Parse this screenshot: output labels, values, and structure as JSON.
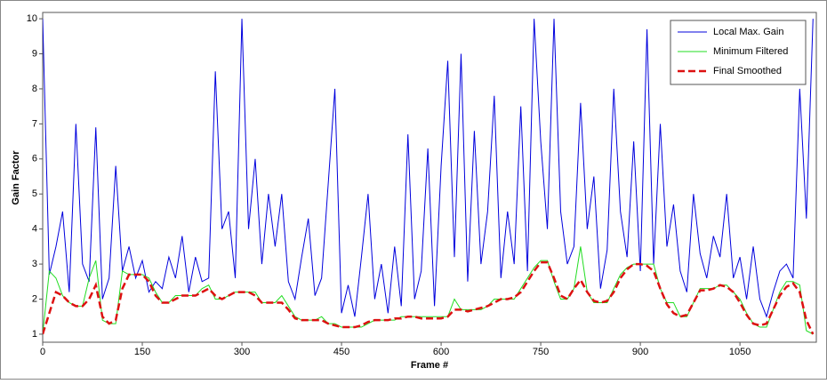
{
  "chart_data": {
    "type": "line",
    "x_label": "Frame #",
    "y_label": "Gain Factor",
    "x": [
      0,
      10,
      20,
      30,
      40,
      50,
      60,
      70,
      80,
      90,
      100,
      110,
      120,
      130,
      140,
      150,
      160,
      170,
      180,
      190,
      200,
      210,
      220,
      230,
      240,
      250,
      260,
      270,
      280,
      290,
      300,
      310,
      320,
      330,
      340,
      350,
      360,
      370,
      380,
      390,
      400,
      410,
      420,
      430,
      440,
      450,
      460,
      470,
      480,
      490,
      500,
      510,
      520,
      530,
      540,
      550,
      560,
      570,
      580,
      590,
      600,
      610,
      620,
      630,
      640,
      650,
      660,
      670,
      680,
      690,
      700,
      710,
      720,
      730,
      740,
      750,
      760,
      770,
      780,
      790,
      800,
      810,
      820,
      830,
      840,
      850,
      860,
      870,
      880,
      890,
      900,
      910,
      920,
      930,
      940,
      950,
      960,
      970,
      980,
      990,
      1000,
      1010,
      1020,
      1030,
      1040,
      1050,
      1060,
      1070,
      1080,
      1090,
      1100,
      1110,
      1120,
      1130,
      1140,
      1150,
      1160
    ],
    "series": [
      {
        "name": "Local Max. Gain",
        "color": "#0000dd",
        "style": "solid",
        "values": [
          10,
          2.7,
          3.5,
          4.5,
          2.2,
          7.0,
          3.0,
          2.5,
          6.9,
          2.0,
          2.6,
          5.8,
          2.8,
          3.5,
          2.6,
          3.1,
          2.2,
          2.5,
          2.3,
          3.2,
          2.6,
          3.8,
          2.2,
          3.2,
          2.5,
          2.6,
          8.5,
          4.0,
          4.5,
          2.6,
          10.0,
          4.0,
          6.0,
          3.0,
          5.0,
          3.5,
          5.0,
          2.5,
          2.0,
          3.2,
          4.3,
          2.1,
          2.6,
          5.3,
          8.0,
          1.6,
          2.4,
          1.5,
          3.2,
          5.0,
          2.0,
          3.0,
          1.6,
          3.5,
          1.8,
          6.7,
          2.0,
          2.8,
          6.3,
          1.8,
          5.8,
          8.8,
          3.2,
          9.0,
          2.5,
          6.8,
          3.0,
          4.5,
          7.8,
          2.6,
          4.5,
          3.0,
          7.5,
          2.8,
          10.0,
          6.5,
          4.0,
          10.0,
          4.5,
          3.0,
          3.5,
          7.6,
          4.0,
          5.5,
          2.3,
          3.4,
          8.0,
          4.5,
          3.2,
          6.5,
          2.8,
          9.7,
          3.0,
          7.0,
          3.5,
          4.7,
          2.8,
          2.2,
          5.0,
          3.3,
          2.6,
          3.8,
          3.2,
          5.0,
          2.6,
          3.2,
          2.0,
          3.5,
          2.0,
          1.5,
          2.2,
          2.8,
          3.0,
          2.6,
          8.0,
          4.3,
          10.0
        ]
      },
      {
        "name": "Minimum Filtered",
        "color": "#22dd22",
        "style": "solid",
        "values": [
          1.0,
          2.8,
          2.6,
          2.1,
          1.9,
          1.8,
          1.8,
          2.6,
          3.1,
          1.4,
          1.3,
          1.3,
          2.8,
          2.7,
          2.7,
          2.7,
          2.6,
          2.2,
          1.9,
          1.9,
          2.1,
          2.1,
          2.1,
          2.1,
          2.3,
          2.4,
          2.0,
          2.0,
          2.1,
          2.2,
          2.2,
          2.2,
          2.2,
          1.9,
          1.9,
          1.9,
          2.1,
          1.8,
          1.5,
          1.4,
          1.4,
          1.4,
          1.5,
          1.3,
          1.3,
          1.2,
          1.2,
          1.2,
          1.2,
          1.3,
          1.4,
          1.4,
          1.4,
          1.4,
          1.5,
          1.5,
          1.5,
          1.5,
          1.5,
          1.5,
          1.5,
          1.5,
          2.0,
          1.7,
          1.7,
          1.7,
          1.7,
          1.8,
          2.0,
          2.0,
          2.0,
          2.0,
          2.3,
          2.6,
          2.9,
          3.1,
          3.1,
          2.5,
          2.0,
          2.0,
          2.3,
          3.5,
          2.2,
          1.9,
          1.9,
          1.9,
          2.3,
          2.7,
          2.9,
          3.0,
          3.0,
          3.0,
          3.0,
          2.3,
          1.9,
          1.9,
          1.5,
          1.5,
          1.9,
          2.3,
          2.3,
          2.3,
          2.4,
          2.4,
          2.2,
          2.0,
          1.6,
          1.3,
          1.2,
          1.2,
          1.7,
          2.2,
          2.5,
          2.5,
          2.4,
          1.1,
          1.0
        ]
      },
      {
        "name": "Final Smoothed",
        "color": "#dd1111",
        "style": "dashed",
        "values": [
          1.0,
          1.6,
          2.2,
          2.1,
          1.9,
          1.8,
          1.8,
          2.0,
          2.4,
          1.5,
          1.3,
          1.4,
          2.3,
          2.7,
          2.7,
          2.7,
          2.5,
          2.1,
          1.9,
          1.9,
          2.0,
          2.1,
          2.1,
          2.1,
          2.2,
          2.3,
          2.1,
          2.0,
          2.1,
          2.2,
          2.2,
          2.2,
          2.1,
          1.9,
          1.9,
          1.9,
          1.9,
          1.7,
          1.45,
          1.4,
          1.4,
          1.4,
          1.4,
          1.3,
          1.25,
          1.2,
          1.2,
          1.2,
          1.25,
          1.35,
          1.4,
          1.4,
          1.4,
          1.45,
          1.45,
          1.5,
          1.5,
          1.45,
          1.45,
          1.45,
          1.45,
          1.5,
          1.7,
          1.7,
          1.65,
          1.7,
          1.75,
          1.8,
          1.9,
          2.0,
          2.0,
          2.05,
          2.2,
          2.5,
          2.8,
          3.05,
          3.05,
          2.6,
          2.1,
          2.0,
          2.3,
          2.55,
          2.2,
          1.95,
          1.9,
          1.95,
          2.2,
          2.6,
          2.85,
          3.0,
          3.0,
          2.95,
          2.8,
          2.3,
          1.85,
          1.6,
          1.5,
          1.55,
          1.9,
          2.25,
          2.25,
          2.3,
          2.4,
          2.35,
          2.2,
          1.9,
          1.55,
          1.3,
          1.25,
          1.3,
          1.7,
          2.1,
          2.35,
          2.45,
          2.2,
          1.4,
          1.0
        ]
      }
    ],
    "xlim": [
      0,
      1165
    ],
    "ylim": [
      0.77,
      10.18
    ],
    "xticks": [
      0,
      150,
      300,
      450,
      600,
      750,
      900,
      1050
    ],
    "yticks": [
      1,
      2,
      3,
      4,
      5,
      6,
      7,
      8,
      9,
      10
    ],
    "grid": false,
    "legend": "upper right"
  }
}
